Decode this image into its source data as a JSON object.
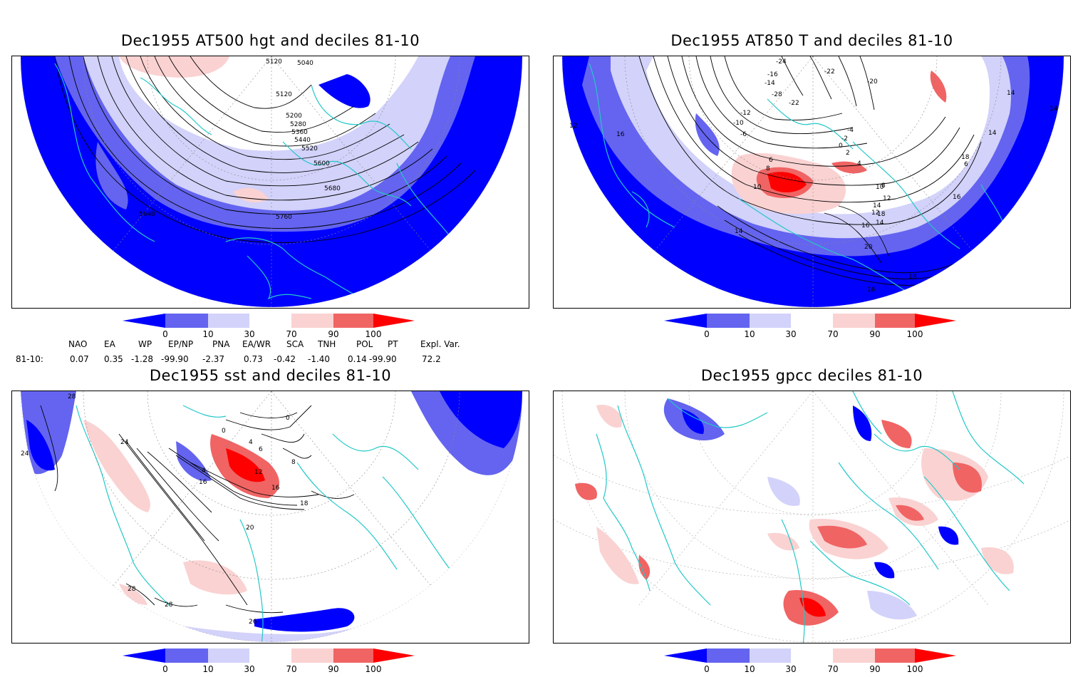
{
  "panels": [
    {
      "title": "Dec1955 AT500 hgt and deciles 81-10",
      "contour_labels": [
        "5120",
        "5040",
        "5120",
        "5200",
        "5280",
        "5360",
        "5440",
        "5520",
        "5600",
        "5680",
        "5760",
        "5640"
      ]
    },
    {
      "title": "Dec1955 AT850 T and deciles 81-10",
      "contour_labels": [
        "-24",
        "-22",
        "-20",
        "-16",
        "-14",
        "-28",
        "-22",
        "-12",
        "-10",
        "-6",
        "-4",
        "-2",
        "0",
        "2",
        "4",
        "6",
        "8",
        "10",
        "12",
        "14",
        "16",
        "18",
        "20",
        "16",
        "18",
        "14",
        "12",
        "10",
        "8",
        "6",
        "14",
        "12",
        "14",
        "16",
        "14",
        "14",
        "16",
        "18"
      ]
    },
    {
      "title": "Dec1955 sst and deciles 81-10",
      "contour_labels": [
        "28",
        "24",
        "24",
        "0",
        "0",
        "4",
        "6",
        "4",
        "8",
        "12",
        "16",
        "16",
        "18",
        "20",
        "28",
        "28",
        "26"
      ]
    },
    {
      "title": "Dec1955 gpcc deciles 81-10",
      "contour_labels": []
    }
  ],
  "colorbar": {
    "ticks": [
      "0",
      "10",
      "30",
      "70",
      "90",
      "100"
    ],
    "colors": [
      "#0000ff",
      "#6464f0",
      "#d2d2fa",
      "#ffffff",
      "#fad2d2",
      "#f06464",
      "#ff0000"
    ]
  },
  "indices": {
    "headers": [
      "NAO",
      "EA",
      "WP",
      "EP/NP",
      "PNA",
      "EA/WR",
      "SCA",
      "TNH",
      "POL",
      "PT",
      "Expl. Var."
    ],
    "row_label": "81-10:",
    "values": [
      "0.07",
      "0.35",
      "-1.28",
      "-99.90",
      "-2.37",
      "0.73",
      "-0.42",
      "-1.40",
      "0.14",
      "-99.90",
      "72.2"
    ]
  },
  "colors": {
    "coast": "#22c8c8",
    "contour": "#000000",
    "high": "#ff0000",
    "low": "#0000ff"
  }
}
